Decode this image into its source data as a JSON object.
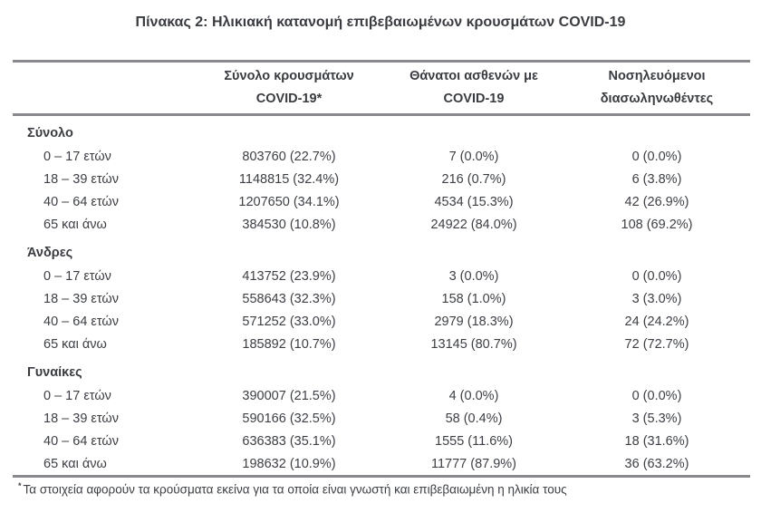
{
  "title": "Πίνακας 2: Ηλικιακή κατανομή επιβεβαιωμένων κρουσμάτων COVID-19",
  "table": {
    "columns": [
      {
        "line1": "Σύνολο κρουσμάτων",
        "line2": "COVID-19*"
      },
      {
        "line1": "Θάνατοι ασθενών με",
        "line2": "COVID-19"
      },
      {
        "line1": "Νοσηλευόμενοι",
        "line2": "διασωληνωθέντες"
      }
    ],
    "sections": [
      {
        "label": "Σύνολο",
        "rows": [
          {
            "age": "0 – 17 ετών",
            "cases": "803760 (22.7%)",
            "deaths": "7 (0.0%)",
            "intubated": "0 (0.0%)"
          },
          {
            "age": "18 – 39 ετών",
            "cases": "1148815 (32.4%)",
            "deaths": "216 (0.7%)",
            "intubated": "6 (3.8%)"
          },
          {
            "age": "40 – 64 ετών",
            "cases": "1207650 (34.1%)",
            "deaths": "4534 (15.3%)",
            "intubated": "42 (26.9%)"
          },
          {
            "age": "65 και άνω",
            "cases": "384530 (10.8%)",
            "deaths": "24922 (84.0%)",
            "intubated": "108 (69.2%)"
          }
        ]
      },
      {
        "label": "Άνδρες",
        "rows": [
          {
            "age": "0 – 17 ετών",
            "cases": "413752 (23.9%)",
            "deaths": "3 (0.0%)",
            "intubated": "0 (0.0%)"
          },
          {
            "age": "18 – 39 ετών",
            "cases": "558643 (32.3%)",
            "deaths": "158 (1.0%)",
            "intubated": "3 (3.0%)"
          },
          {
            "age": "40 – 64 ετών",
            "cases": "571252 (33.0%)",
            "deaths": "2979 (18.3%)",
            "intubated": "24 (24.2%)"
          },
          {
            "age": "65 και άνω",
            "cases": "185892 (10.7%)",
            "deaths": "13145 (80.7%)",
            "intubated": "72 (72.7%)"
          }
        ]
      },
      {
        "label": "Γυναίκες",
        "rows": [
          {
            "age": "0 – 17 ετών",
            "cases": "390007 (21.5%)",
            "deaths": "4 (0.0%)",
            "intubated": "0 (0.0%)"
          },
          {
            "age": "18 – 39 ετών",
            "cases": "590166 (32.5%)",
            "deaths": "58 (0.4%)",
            "intubated": "3 (5.3%)"
          },
          {
            "age": "40 – 64 ετών",
            "cases": "636383 (35.1%)",
            "deaths": "1555 (11.6%)",
            "intubated": "18 (31.6%)"
          },
          {
            "age": "65 και άνω",
            "cases": "198632 (10.9%)",
            "deaths": "11777 (87.9%)",
            "intubated": "36 (63.2%)"
          }
        ]
      }
    ]
  },
  "footnote": {
    "marker": "*",
    "text": "Τα στοιχεία αφορούν τα κρούσματα εκείνα για τα οποία είναι γνωστή και επιβεβαιωμένη η ηλικία τους"
  }
}
